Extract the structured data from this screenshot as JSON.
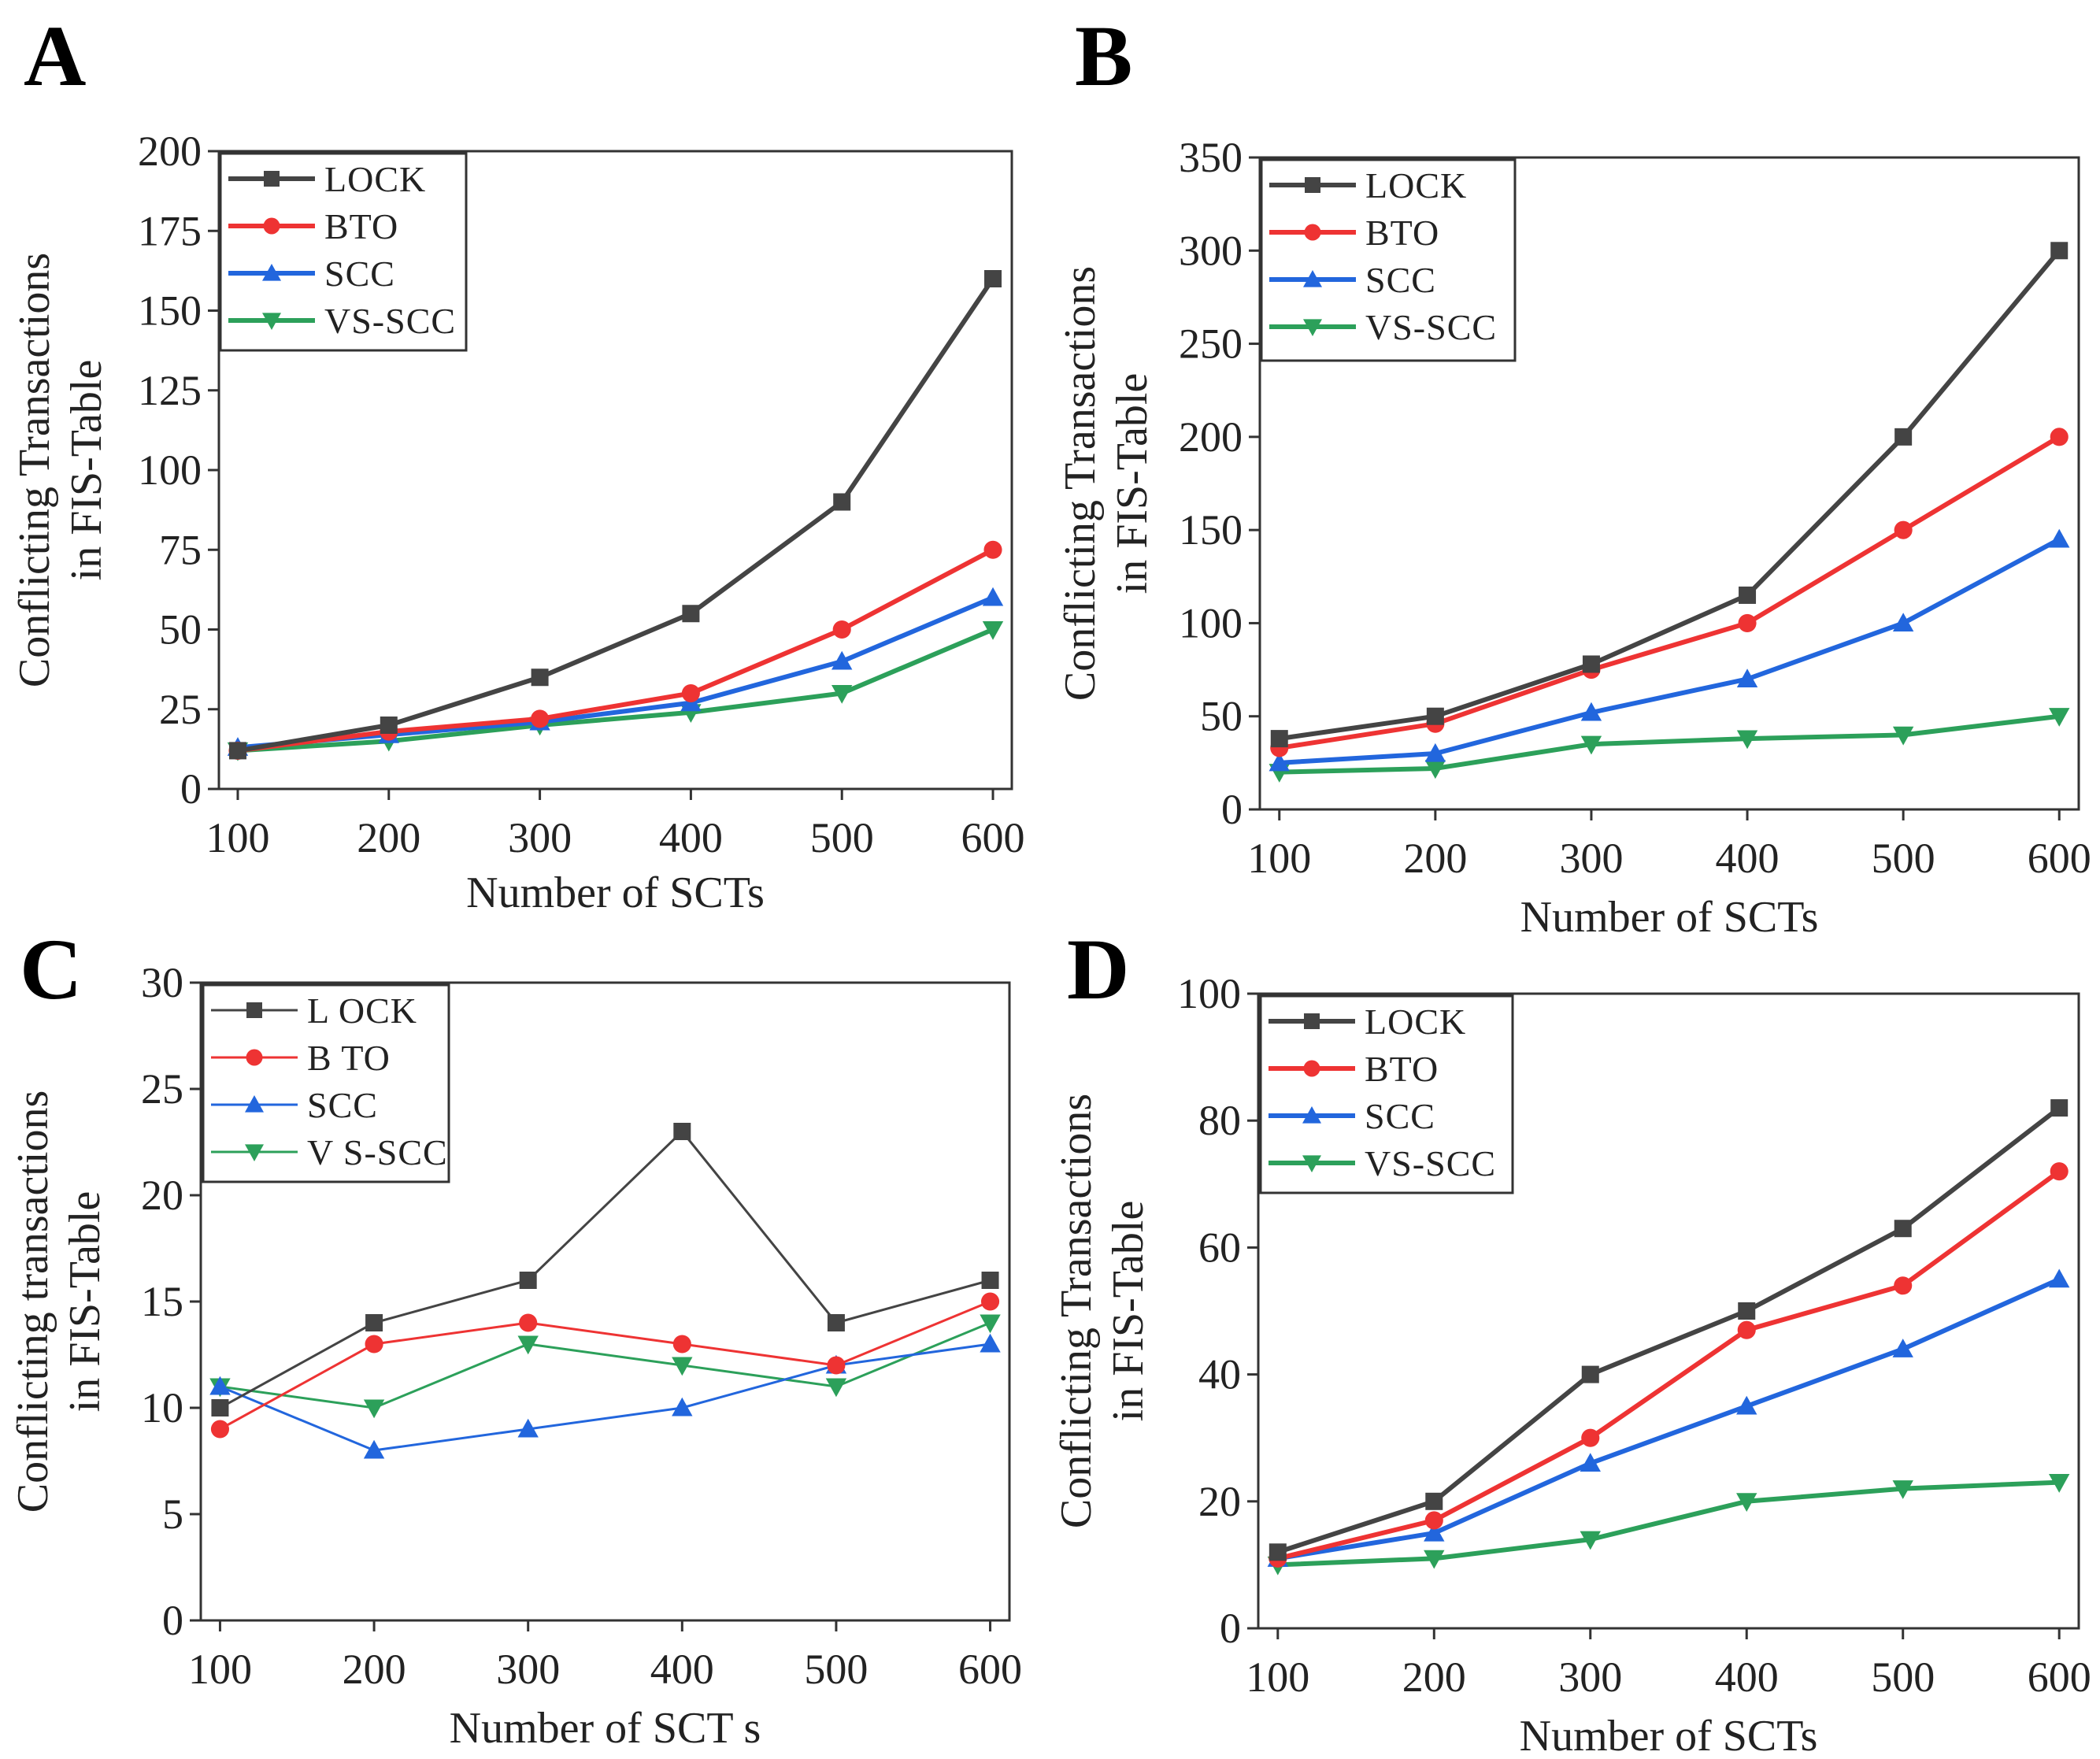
{
  "series_style": {
    "LOCK": {
      "color": "#444444",
      "marker": "square"
    },
    "BTO": {
      "color": "#ee3333",
      "marker": "circle"
    },
    "SCC": {
      "color": "#2266dd",
      "marker": "triangle-up"
    },
    "VS-SCC": {
      "color": "#2ca05a",
      "marker": "triangle-down"
    }
  },
  "chart_data": [
    {
      "panel": "A",
      "type": "line",
      "xlabel": "Number of SCTs",
      "ylabel": [
        "Conflicting Transactions",
        "in FIS-Table"
      ],
      "x": [
        100,
        200,
        300,
        400,
        500,
        600
      ],
      "xticks": [
        "100",
        "200",
        "300",
        "400",
        "500",
        "600"
      ],
      "yticks": [
        "0",
        "25",
        "50",
        "75",
        "100",
        "125",
        "150",
        "175",
        "200"
      ],
      "ylim": [
        0,
        200
      ],
      "series": [
        {
          "name": "LOCK",
          "values": [
            12,
            20,
            35,
            55,
            90,
            160
          ]
        },
        {
          "name": "BTO",
          "values": [
            12,
            18,
            22,
            30,
            50,
            75
          ]
        },
        {
          "name": "SCC",
          "values": [
            13,
            17,
            21,
            27,
            40,
            60
          ]
        },
        {
          "name": "VS-SCC",
          "values": [
            12,
            15,
            20,
            24,
            30,
            50
          ]
        }
      ]
    },
    {
      "panel": "B",
      "type": "line",
      "xlabel": "Number of SCTs",
      "ylabel": [
        "Conflicting Transactions",
        "in FIS-Table"
      ],
      "x": [
        100,
        200,
        300,
        400,
        500,
        600
      ],
      "xticks": [
        "100",
        "200",
        "300",
        "400",
        "500",
        "600"
      ],
      "yticks": [
        "0",
        "50",
        "100",
        "150",
        "200",
        "250",
        "300",
        "350"
      ],
      "ylim": [
        0,
        350
      ],
      "series": [
        {
          "name": "LOCK",
          "values": [
            38,
            50,
            78,
            115,
            200,
            300
          ]
        },
        {
          "name": "BTO",
          "values": [
            33,
            46,
            75,
            100,
            150,
            200
          ]
        },
        {
          "name": "SCC",
          "values": [
            25,
            30,
            52,
            70,
            100,
            145
          ]
        },
        {
          "name": "VS-SCC",
          "values": [
            20,
            22,
            35,
            38,
            40,
            50
          ]
        }
      ]
    },
    {
      "panel": "C",
      "type": "line",
      "xlabel": "Number of SCT s",
      "ylabel": [
        "Conflicting transactions",
        "in FIS-Table"
      ],
      "x": [
        100,
        200,
        300,
        400,
        500,
        600
      ],
      "xticks": [
        "100",
        "200",
        "300",
        "400",
        "500",
        "600"
      ],
      "yticks": [
        "0",
        "5",
        "10",
        "15",
        "20",
        "25",
        "30"
      ],
      "ylim": [
        0,
        30
      ],
      "series": [
        {
          "name": "L OCK",
          "values": [
            10,
            14,
            16,
            23,
            14,
            16
          ]
        },
        {
          "name": "B TO",
          "values": [
            9,
            13,
            14,
            13,
            12,
            15
          ]
        },
        {
          "name": "SCC",
          "values": [
            11,
            8,
            9,
            10,
            12,
            13
          ]
        },
        {
          "name": "V S-SCC",
          "values": [
            11,
            10,
            13,
            12,
            11,
            14
          ]
        }
      ]
    },
    {
      "panel": "D",
      "type": "line",
      "xlabel": "Number of SCTs",
      "ylabel": [
        "Conflicting Transactions",
        "in FIS-Table"
      ],
      "x": [
        100,
        200,
        300,
        400,
        500,
        600
      ],
      "xticks": [
        "100",
        "200",
        "300",
        "400",
        "500",
        "600"
      ],
      "yticks": [
        "0",
        "20",
        "40",
        "60",
        "80",
        "100"
      ],
      "ylim": [
        0,
        100
      ],
      "series": [
        {
          "name": "LOCK",
          "values": [
            12,
            20,
            40,
            50,
            63,
            82
          ]
        },
        {
          "name": "BTO",
          "values": [
            11,
            17,
            30,
            47,
            54,
            72
          ]
        },
        {
          "name": "SCC",
          "values": [
            11,
            15,
            26,
            35,
            44,
            55
          ]
        },
        {
          "name": "VS-SCC",
          "values": [
            10,
            11,
            14,
            20,
            22,
            23
          ]
        }
      ]
    }
  ]
}
